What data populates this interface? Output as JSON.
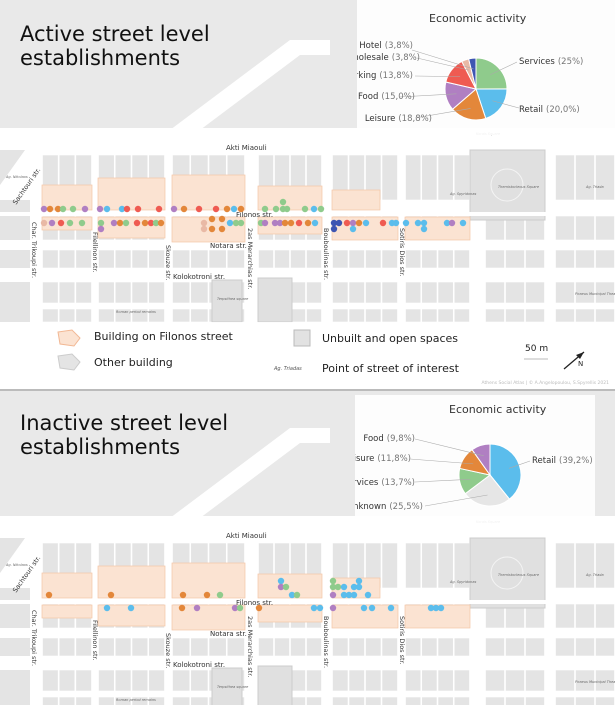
{
  "colors": {
    "services": "#8fcb8c",
    "retail": "#5bbdec",
    "leisure": "#e3873a",
    "food": "#b07fc2",
    "parking": "#ef5b52",
    "wholesale": "#e9b9a5",
    "hotel": "#3e55b2",
    "unknown": "#e6e6e6",
    "filonos_building": "#fbe3d2",
    "other_building": "#e4e4e4"
  },
  "map_labels": {
    "akti_miaouli": "Akti Miaouli",
    "filonos": "Filonos str.",
    "notara": "Notara str.",
    "kolokotroni": "Kolokotroni str.",
    "sachtouri": "Sachtouri str.",
    "char_trikoupi": "Char. Trikoupi str.",
    "filellinon": "Filellinon str.",
    "skouze": "Skouze str.",
    "merarchias": "2as Merarchias str.",
    "bouboulinas": "Bouboulinas str.",
    "sotiris_dios": "Sotiris Dios str.",
    "ag_nikolaos": "Ag. Nikolaos",
    "themistocleous": "Themistocleous Square",
    "ag_spyridonas": "Ag. Spyridonas",
    "ag_triada": "Ag. Triada",
    "terpsithea": "Terpsithea square",
    "roman": "Roman period remains",
    "theatre": "Piraeus Municipal Theatre",
    "korais": "Korais Square"
  },
  "panels": [
    {
      "title_line1": "Active street level",
      "title_line2": "establishments",
      "chart_data": {
        "type": "pie",
        "title": "Economic activity",
        "slices": [
          {
            "key": "services",
            "label": "Services",
            "pct_text": "(25%)",
            "value": 25.0
          },
          {
            "key": "retail",
            "label": "Retail",
            "pct_text": "(20,0%)",
            "value": 20.0
          },
          {
            "key": "leisure",
            "label": "Leisure",
            "pct_text": "(18,8%)",
            "value": 18.8
          },
          {
            "key": "food",
            "label": "Food",
            "pct_text": "(15,0%)",
            "value": 15.0
          },
          {
            "key": "parking",
            "label": "Parking",
            "pct_text": "(13,8%)",
            "value": 13.8
          },
          {
            "key": "wholesale",
            "label": "Wholesale",
            "pct_text": "(3,8%)",
            "value": 3.8
          },
          {
            "key": "hotel",
            "label": "Hotel",
            "pct_text": "(3,8%)",
            "value": 3.8
          }
        ]
      }
    },
    {
      "title_line1": "Inactive street level",
      "title_line2": "establishments",
      "chart_data": {
        "type": "pie",
        "title": "Economic activity",
        "slices": [
          {
            "key": "retail",
            "label": "Retail",
            "pct_text": "(39,2%)",
            "value": 39.2
          },
          {
            "key": "unknown",
            "label": "Unknown",
            "pct_text": "(25,5%)",
            "value": 25.5
          },
          {
            "key": "services",
            "label": "Services",
            "pct_text": "(13,7%)",
            "value": 13.7
          },
          {
            "key": "leisure",
            "label": "Leisure",
            "pct_text": "(11,8%)",
            "value": 11.8
          },
          {
            "key": "food",
            "label": "Food",
            "pct_text": "(9,8%)",
            "value": 9.8
          }
        ]
      }
    }
  ],
  "legend": {
    "filonos_building": "Building on Filonos street",
    "other_building": "Other building",
    "unbuilt": "Unbuilt and open spaces",
    "poi_sample": "Ag. Triadas",
    "poi": "Point of street of interest",
    "scale": "50 m",
    "north": "N"
  },
  "credit": "Athens Social Atlas | © A.Angelopoulou, S.Spyrellis 2021"
}
